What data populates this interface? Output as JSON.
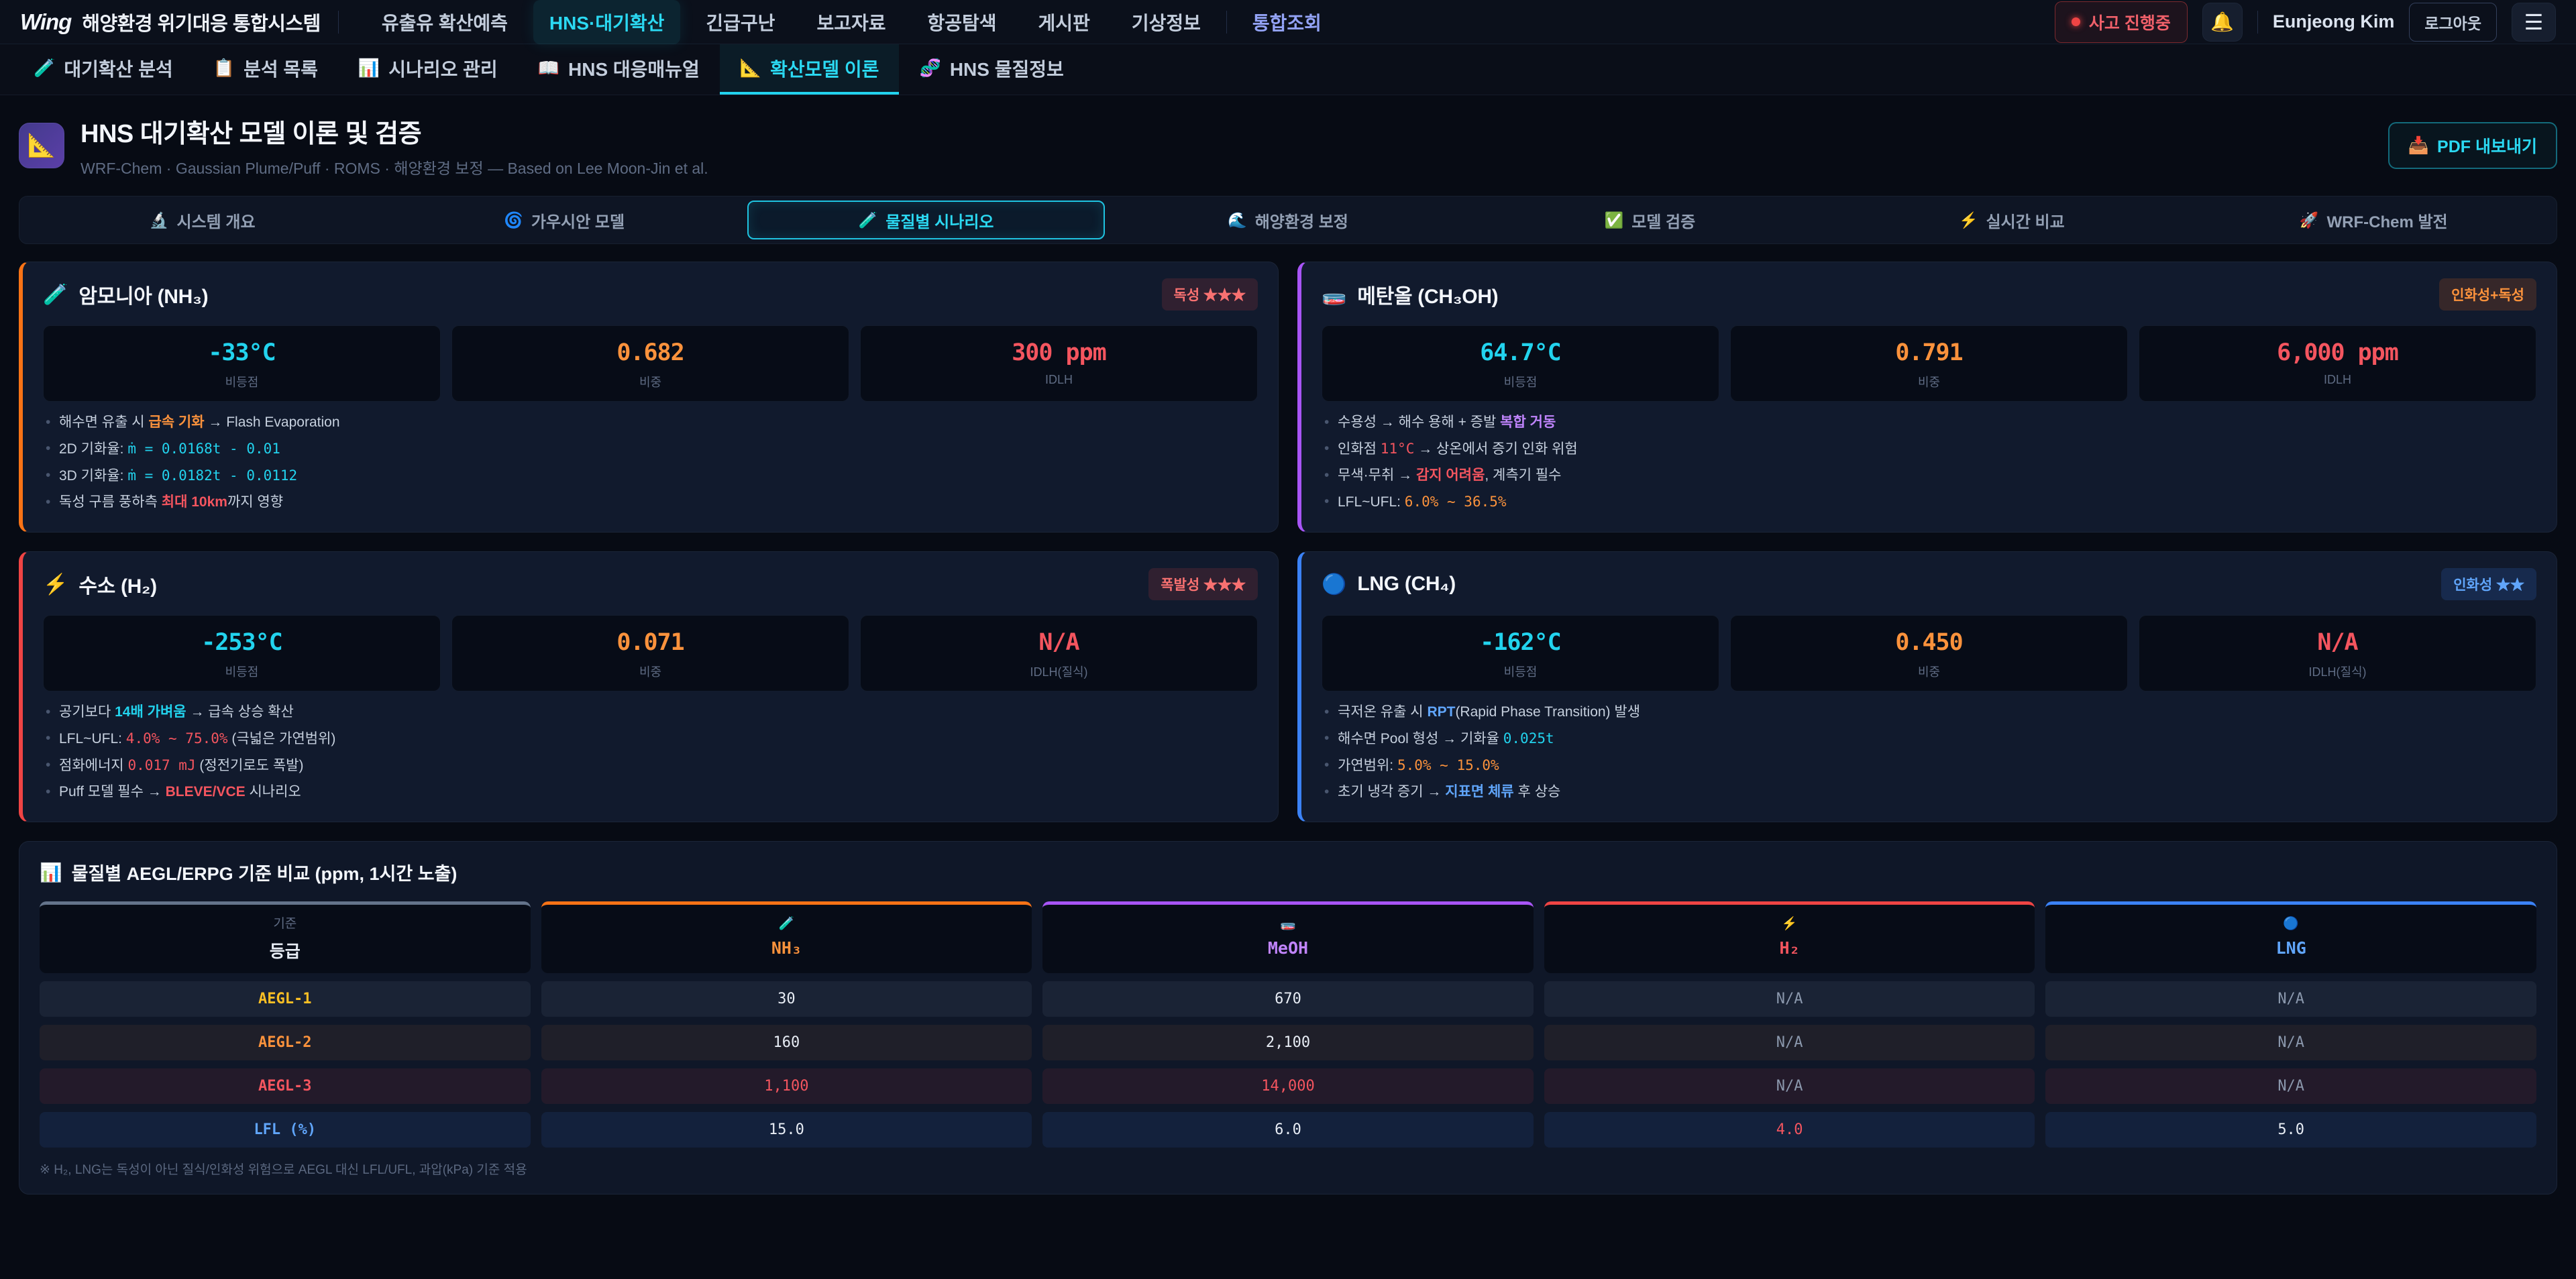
{
  "topnav": {
    "brand": "Wing",
    "brand_title": "해양환경 위기대응 통합시스템",
    "items": [
      {
        "label": "유출유 확산예측"
      },
      {
        "label": "HNS·대기확산",
        "active": true
      },
      {
        "label": "긴급구난"
      },
      {
        "label": "보고자료"
      },
      {
        "label": "항공탐색"
      },
      {
        "label": "게시판"
      },
      {
        "label": "기상정보"
      },
      {
        "label": "통합조회",
        "highlight": true
      }
    ],
    "incident_badge": "사고 진행중",
    "bell_icon": "🔔",
    "user_name": "Eunjeong Kim",
    "logout_label": "로그아웃",
    "menu_icon": "☰"
  },
  "subnav": {
    "items": [
      {
        "icon": "🧪",
        "label": "대기확산 분석"
      },
      {
        "icon": "📋",
        "label": "분석 목록"
      },
      {
        "icon": "📊",
        "label": "시나리오 관리"
      },
      {
        "icon": "📖",
        "label": "HNS 대응매뉴얼"
      },
      {
        "icon": "📐",
        "label": "확산모델 이론",
        "active": true
      },
      {
        "icon": "🧬",
        "label": "HNS 물질정보"
      }
    ]
  },
  "header": {
    "icon": "📐",
    "title": "HNS 대기확산 모델 이론 및 검증",
    "subtitle": "WRF-Chem · Gaussian Plume/Puff · ROMS · 해양환경 보정 — Based on Lee Moon-Jin et al.",
    "pdf_icon": "📥",
    "pdf_label": "PDF 내보내기"
  },
  "tabs": [
    {
      "icon": "🔬",
      "label": "시스템 개요"
    },
    {
      "icon": "🌀",
      "label": "가우시안 모델"
    },
    {
      "icon": "🧪",
      "label": "물질별 시나리오",
      "active": true
    },
    {
      "icon": "🌊",
      "label": "해양환경 보정"
    },
    {
      "icon": "✅",
      "label": "모델 검증"
    },
    {
      "icon": "⚡",
      "label": "실시간 비교"
    },
    {
      "icon": "🚀",
      "label": "WRF-Chem 발전"
    }
  ],
  "cards": [
    {
      "icon": "🧪",
      "title": "암모니아 (NH₃)",
      "badge": "독성 ★★★",
      "badge_style": "red",
      "accent": "#f97316",
      "stats": [
        {
          "value": "-33°C",
          "label": "비등점",
          "color": "cyan"
        },
        {
          "value": "0.682",
          "label": "비중",
          "color": "orange"
        },
        {
          "value": "300 ppm",
          "label": "IDLH",
          "color": "red"
        }
      ],
      "bullets": [
        [
          {
            "t": "해수면 유출 시 "
          },
          {
            "t": "급속 기화",
            "s": "hl-orange"
          },
          {
            "t": " → Flash Evaporation"
          }
        ],
        [
          {
            "t": "2D 기화율: "
          },
          {
            "t": "ṁ = 0.0168t - 0.01",
            "s": "mono-cyan"
          }
        ],
        [
          {
            "t": "3D 기화율: "
          },
          {
            "t": "ṁ = 0.0182t - 0.0112",
            "s": "mono-cyan"
          }
        ],
        [
          {
            "t": "독성 구름 풍하측 "
          },
          {
            "t": "최대 10km",
            "s": "hl-red"
          },
          {
            "t": "까지 영향"
          }
        ]
      ]
    },
    {
      "icon": "🧫",
      "title": "메탄올 (CH₃OH)",
      "badge": "인화성+독성",
      "badge_style": "orange",
      "accent": "#a855f7",
      "stats": [
        {
          "value": "64.7°C",
          "label": "비등점",
          "color": "cyan"
        },
        {
          "value": "0.791",
          "label": "비중",
          "color": "orange"
        },
        {
          "value": "6,000 ppm",
          "label": "IDLH",
          "color": "red"
        }
      ],
      "bullets": [
        [
          {
            "t": "수용성 → 해수 용해 + 증발 "
          },
          {
            "t": "복합 거동",
            "s": "hl-purple"
          }
        ],
        [
          {
            "t": "인화점 "
          },
          {
            "t": "11°C",
            "s": "mono-red"
          },
          {
            "t": " → 상온에서 증기 인화 위험"
          }
        ],
        [
          {
            "t": "무색·무취 → "
          },
          {
            "t": "감지 어려움",
            "s": "hl-red"
          },
          {
            "t": ", 계측기 필수"
          }
        ],
        [
          {
            "t": "LFL~UFL: "
          },
          {
            "t": "6.0% ~ 36.5%",
            "s": "mono-orange"
          }
        ]
      ]
    },
    {
      "icon": "⚡",
      "title": "수소 (H₂)",
      "badge": "폭발성 ★★★",
      "badge_style": "red",
      "accent": "#ef4444",
      "stats": [
        {
          "value": "-253°C",
          "label": "비등점",
          "color": "cyan"
        },
        {
          "value": "0.071",
          "label": "비중",
          "color": "orange"
        },
        {
          "value": "N/A",
          "label": "IDLH(질식)",
          "color": "red"
        }
      ],
      "bullets": [
        [
          {
            "t": "공기보다 "
          },
          {
            "t": "14배 가벼움",
            "s": "hl-cyan"
          },
          {
            "t": " → 급속 상승 확산"
          }
        ],
        [
          {
            "t": "LFL~UFL: "
          },
          {
            "t": "4.0% ~ 75.0%",
            "s": "mono-red"
          },
          {
            "t": " (극넓은 가연범위)"
          }
        ],
        [
          {
            "t": "점화에너지 "
          },
          {
            "t": "0.017 mJ",
            "s": "mono-red"
          },
          {
            "t": " (정전기로도 폭발)"
          }
        ],
        [
          {
            "t": "Puff 모델 필수 → "
          },
          {
            "t": "BLEVE/VCE",
            "s": "hl-red"
          },
          {
            "t": " 시나리오"
          }
        ]
      ]
    },
    {
      "icon": "🔵",
      "title": "LNG (CH₄)",
      "badge": "인화성 ★★",
      "badge_style": "blue",
      "accent": "#3b82f6",
      "stats": [
        {
          "value": "-162°C",
          "label": "비등점",
          "color": "cyan"
        },
        {
          "value": "0.450",
          "label": "비중",
          "color": "orange"
        },
        {
          "value": "N/A",
          "label": "IDLH(질식)",
          "color": "red"
        }
      ],
      "bullets": [
        [
          {
            "t": "극저온 유출 시 "
          },
          {
            "t": "RPT",
            "s": "hl-blue"
          },
          {
            "t": "(Rapid Phase Transition) 발생"
          }
        ],
        [
          {
            "t": "해수면 Pool 형성 → 기화율 "
          },
          {
            "t": "0.025t",
            "s": "mono-cyan"
          }
        ],
        [
          {
            "t": "가연범위: "
          },
          {
            "t": "5.0% ~ 15.0%",
            "s": "mono-orange"
          }
        ],
        [
          {
            "t": "초기 냉각 증기 → "
          },
          {
            "t": "지표면 체류",
            "s": "hl-blue"
          },
          {
            "t": " 후 상승"
          }
        ]
      ]
    }
  ],
  "table": {
    "icon": "📊",
    "title": "물질별 AEGL/ERPG 기준 비교 (ppm, 1시간 노출)",
    "headers": [
      {
        "top": "기준",
        "main": "등급"
      },
      {
        "icon": "🧪",
        "name": "NH₃",
        "color": "orange"
      },
      {
        "icon": "🧫",
        "name": "MeOH",
        "color": "purple"
      },
      {
        "icon": "⚡",
        "name": "H₂",
        "color": "red"
      },
      {
        "icon": "🔵",
        "name": "LNG",
        "color": "blue"
      }
    ],
    "rows": [
      {
        "label": "AEGL-1",
        "label_color": "amber",
        "values": [
          {
            "v": "30",
            "c": "white"
          },
          {
            "v": "670",
            "c": "white"
          },
          {
            "v": "N/A",
            "c": "na"
          },
          {
            "v": "N/A",
            "c": "na"
          }
        ]
      },
      {
        "label": "AEGL-2",
        "label_color": "orange",
        "values": [
          {
            "v": "160",
            "c": "white"
          },
          {
            "v": "2,100",
            "c": "white"
          },
          {
            "v": "N/A",
            "c": "na"
          },
          {
            "v": "N/A",
            "c": "na"
          }
        ]
      },
      {
        "label": "AEGL-3",
        "label_color": "red",
        "values": [
          {
            "v": "1,100",
            "c": "red"
          },
          {
            "v": "14,000",
            "c": "red"
          },
          {
            "v": "N/A",
            "c": "na"
          },
          {
            "v": "N/A",
            "c": "na"
          }
        ]
      },
      {
        "label": "LFL (%)",
        "label_color": "blue",
        "values": [
          {
            "v": "15.0",
            "c": "white"
          },
          {
            "v": "6.0",
            "c": "white"
          },
          {
            "v": "4.0",
            "c": "red"
          },
          {
            "v": "5.0",
            "c": "white"
          }
        ]
      }
    ],
    "footnote": "※ H₂, LNG는 독성이 아닌 질식/인화성 위험으로 AEGL 대신 LFL/UFL, 과압(kPa) 기준 적용"
  },
  "colors": {
    "accent_cyan": "#22d3ee",
    "nh3_accent": "#f97316",
    "meoh_accent": "#a855f7",
    "h2_accent": "#ef4444",
    "lng_accent": "#3b82f6",
    "danger_red": "#ef4444"
  }
}
